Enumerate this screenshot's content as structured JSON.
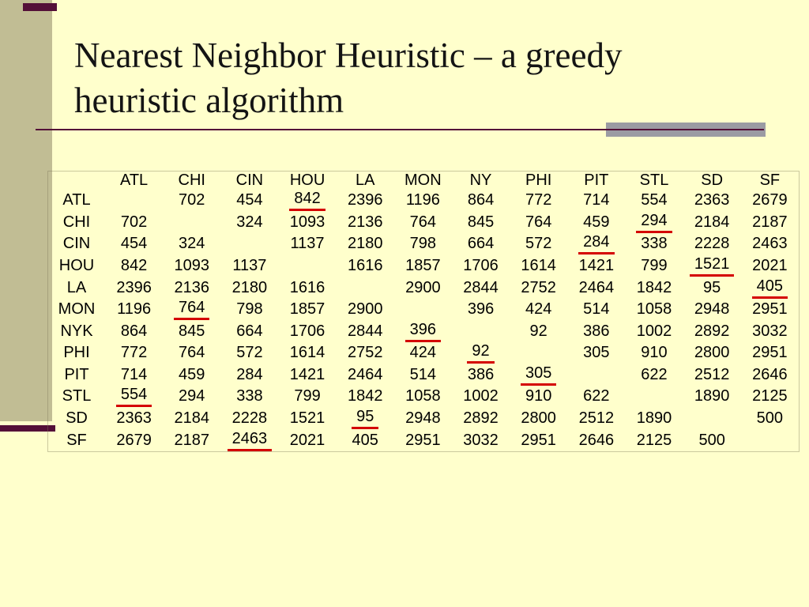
{
  "slide": {
    "title_line1": "Nearest Neighbor Heuristic – a greedy",
    "title_line2": "heuristic algorithm"
  },
  "colors": {
    "background": "#FFFFCC",
    "sidebar_tan": "#C1BD94",
    "accent_maroon": "#541038",
    "accent_gray": "#9B9BA3",
    "underline_red": "#D40000",
    "text": "#000000"
  },
  "matrix": {
    "corner_label": "",
    "col_headers": [
      "ATL",
      "CHI",
      "CIN",
      "HOU",
      "LA",
      "MON",
      "NY",
      "PHI",
      "PIT",
      "STL",
      "SD",
      "SF"
    ],
    "rows": [
      {
        "label": "ATL",
        "cells": [
          "",
          "702",
          "454",
          "842",
          "2396",
          "1196",
          "864",
          "772",
          "714",
          "554",
          "2363",
          "2679"
        ],
        "underline": [
          3
        ]
      },
      {
        "label": "CHI",
        "cells": [
          "702",
          "",
          "324",
          "1093",
          "2136",
          "764",
          "845",
          "764",
          "459",
          "294",
          "2184",
          "2187"
        ],
        "underline": [
          9
        ]
      },
      {
        "label": "CIN",
        "cells": [
          "454",
          "324",
          "",
          "1137",
          "2180",
          "798",
          "664",
          "572",
          "284",
          "338",
          "2228",
          "2463"
        ],
        "underline": [
          8
        ]
      },
      {
        "label": "HOU",
        "cells": [
          "842",
          "1093",
          "1137",
          "",
          "1616",
          "1857",
          "1706",
          "1614",
          "1421",
          "799",
          "1521",
          "2021"
        ],
        "underline": [
          10
        ]
      },
      {
        "label": "LA",
        "cells": [
          "2396",
          "2136",
          "2180",
          "1616",
          "",
          "2900",
          "2844",
          "2752",
          "2464",
          "1842",
          "95",
          "405"
        ],
        "underline": [
          11
        ]
      },
      {
        "label": "MON",
        "cells": [
          "1196",
          "764",
          "798",
          "1857",
          "2900",
          "",
          "396",
          "424",
          "514",
          "1058",
          "2948",
          "2951"
        ],
        "underline": [
          1
        ]
      },
      {
        "label": "NYK",
        "cells": [
          "864",
          "845",
          "664",
          "1706",
          "2844",
          "396",
          "",
          "92",
          "386",
          "1002",
          "2892",
          "3032"
        ],
        "underline": [
          5
        ]
      },
      {
        "label": "PHI",
        "cells": [
          "772",
          "764",
          "572",
          "1614",
          "2752",
          "424",
          "92",
          "",
          "305",
          "910",
          "2800",
          "2951"
        ],
        "underline": [
          6
        ]
      },
      {
        "label": "PIT",
        "cells": [
          "714",
          "459",
          "284",
          "1421",
          "2464",
          "514",
          "386",
          "305",
          "",
          "622",
          "2512",
          "2646"
        ],
        "underline": [
          7
        ]
      },
      {
        "label": "STL",
        "cells": [
          "554",
          "294",
          "338",
          "799",
          "1842",
          "1058",
          "1002",
          "910",
          "622",
          "",
          "1890",
          "2125"
        ],
        "underline": [
          0
        ]
      },
      {
        "label": "SD",
        "cells": [
          "2363",
          "2184",
          "2228",
          "1521",
          "95",
          "2948",
          "2892",
          "2800",
          "2512",
          "1890",
          "",
          "500"
        ],
        "underline": [
          4
        ]
      },
      {
        "label": "SF",
        "cells": [
          "2679",
          "2187",
          "2463",
          "2021",
          "405",
          "2951",
          "3032",
          "2951",
          "2646",
          "2125",
          "500",
          ""
        ],
        "underline": [
          2
        ]
      }
    ]
  }
}
